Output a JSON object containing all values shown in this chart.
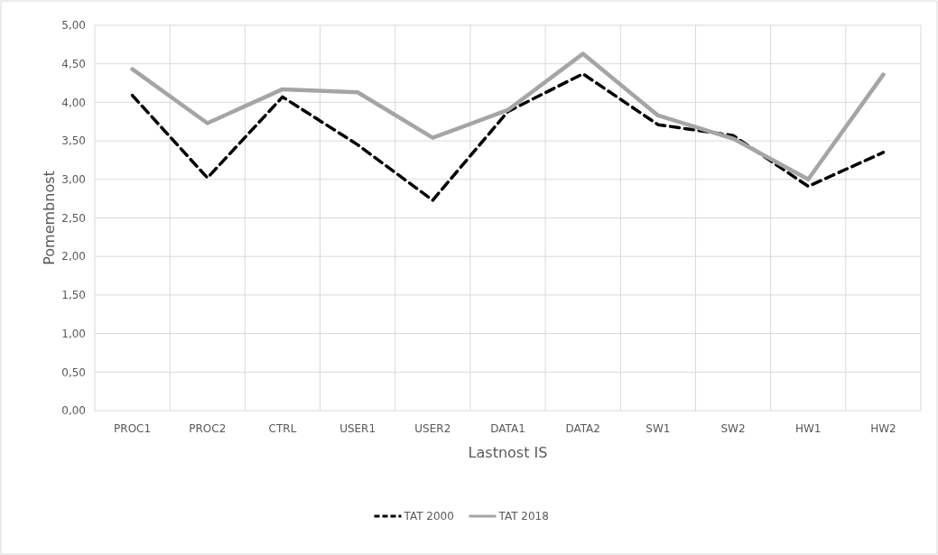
{
  "chart_data": {
    "type": "line",
    "xlabel": "Lastnost IS",
    "ylabel": "Pomembnost",
    "categories": [
      "PROC1",
      "PROC2",
      "CTRL",
      "USER1",
      "USER2",
      "DATA1",
      "DATA2",
      "SW1",
      "SW2",
      "HW1",
      "HW2"
    ],
    "series": [
      {
        "name": "TAT 2000",
        "color": "#000000",
        "line_style": "dashed",
        "values": [
          4.09,
          3.02,
          4.07,
          3.45,
          2.73,
          3.88,
          4.37,
          3.71,
          3.57,
          2.91,
          3.35
        ]
      },
      {
        "name": "TAT 2018",
        "color": "#a5a5a5",
        "line_style": "solid",
        "values": [
          4.43,
          3.73,
          4.17,
          4.13,
          3.54,
          3.9,
          4.63,
          3.83,
          3.53,
          3.0,
          4.36
        ]
      }
    ],
    "ylim": [
      0,
      5
    ],
    "yticks": [
      {
        "value": 0,
        "label": "0,00"
      },
      {
        "value": 0.5,
        "label": "0,50"
      },
      {
        "value": 1,
        "label": "1,00"
      },
      {
        "value": 1.5,
        "label": "1,50"
      },
      {
        "value": 2,
        "label": "2,00"
      },
      {
        "value": 2.5,
        "label": "2,50"
      },
      {
        "value": 3,
        "label": "3,00"
      },
      {
        "value": 3.5,
        "label": "3,50"
      },
      {
        "value": 4,
        "label": "4,00"
      },
      {
        "value": 4.5,
        "label": "4,50"
      },
      {
        "value": 5,
        "label": "5,00"
      }
    ],
    "grid": true,
    "legend": "bottom",
    "marker": "none"
  }
}
